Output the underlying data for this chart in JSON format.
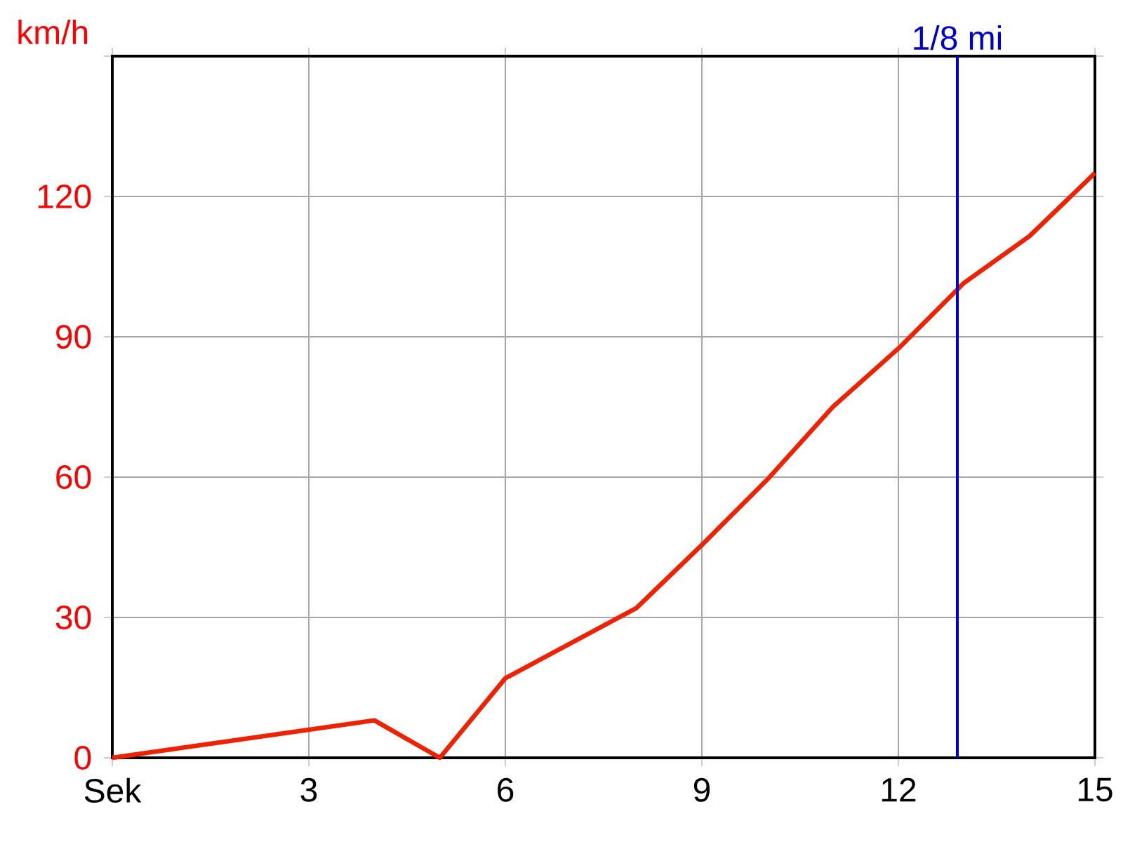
{
  "chart_data": {
    "type": "line",
    "ylabel": "km/h",
    "x": [
      0,
      4,
      5,
      6,
      7,
      8,
      9,
      10,
      11,
      12,
      13,
      14,
      15
    ],
    "series": [
      {
        "color": "#ee2200",
        "values": [
          0,
          8,
          0,
          17,
          24.5,
          32,
          45.5,
          59.5,
          75,
          87.5,
          101.5,
          111.5,
          125
        ]
      }
    ],
    "xlim": [
      0,
      15
    ],
    "ylim": [
      0,
      150
    ],
    "xticks": [
      {
        "value": 0,
        "label": "Sek"
      },
      3,
      6,
      9,
      12,
      15
    ],
    "yticks": [
      0,
      30,
      60,
      90,
      120,
      {
        "value": 150,
        "label": null
      }
    ],
    "ref_lines": [
      {
        "axis": "x",
        "value": 12.9,
        "label": "1/8 mi",
        "color": "#0000cc"
      }
    ],
    "grid": true
  }
}
